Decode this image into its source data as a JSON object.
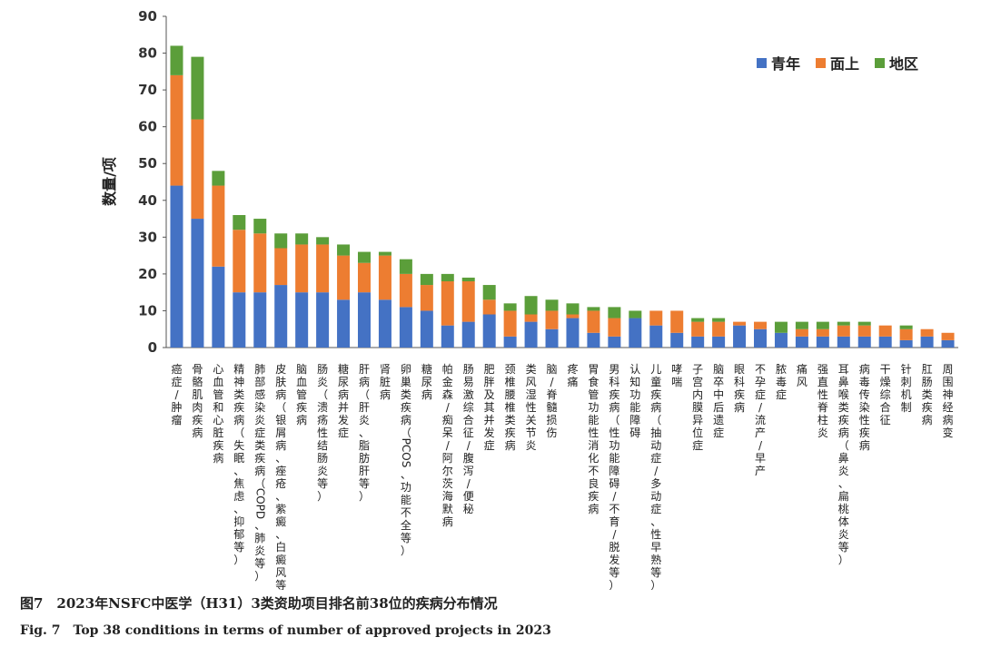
{
  "chart_data": {
    "type": "bar",
    "stacked": true,
    "ylabel": "数量/项",
    "ylim": [
      0,
      90
    ],
    "yticks": [
      0,
      10,
      20,
      30,
      40,
      50,
      60,
      70,
      80,
      90
    ],
    "grid": false,
    "legend_position": "top-right",
    "categories": [
      "癌症/肿瘤",
      "骨骼肌肉疾病",
      "心血管和心脏疾病",
      "精神类疾病（失眠、焦虑、抑郁等）",
      "肺部感染炎症类疾病（COPD、肺炎等）",
      "皮肤病（银屑病、痤疮、紫癜、白癜风等）",
      "脑血管疾病",
      "肠炎（溃疡性结肠炎等）",
      "糖尿病并发症",
      "肝病（肝炎、脂肪肝等）",
      "肾脏病",
      "卵巢类疾病（PCOS、功能不全等）",
      "糖尿病",
      "帕金森/痴呆/阿尔茨海默病",
      "肠易激综合征/腹泻/便秘",
      "肥胖及其并发症",
      "颈椎腰椎类疾病",
      "类风湿性关节炎",
      "脑/脊髓损伤",
      "疼痛",
      "胃食管功能性消化不良疾病",
      "男科疾病（性功能障碍/不育/脱发等）",
      "认知功能障碍",
      "儿童疾病（抽动症/多动症、性早熟等）",
      "哮喘",
      "子宫内膜异位症",
      "脑卒中后遗症",
      "眼科疾病",
      "不孕症/流产/早产",
      "脓毒症",
      "痛风",
      "强直性脊柱炎",
      "耳鼻喉类疾病（鼻炎、扁桃体炎等）",
      "病毒传染性疾病",
      "干燥综合征",
      "针刺机制",
      "肛肠类疾病",
      "周围神经病变"
    ],
    "series": [
      {
        "name": "青年",
        "color": "#4472C4",
        "values": [
          44,
          35,
          22,
          15,
          15,
          17,
          15,
          15,
          13,
          15,
          13,
          11,
          10,
          6,
          7,
          9,
          3,
          7,
          5,
          8,
          4,
          3,
          8,
          6,
          4,
          3,
          3,
          6,
          5,
          4,
          3,
          3,
          3,
          3,
          3,
          2,
          3,
          2
        ]
      },
      {
        "name": "面上",
        "color": "#ED7D31",
        "values": [
          30,
          27,
          22,
          17,
          16,
          10,
          13,
          13,
          12,
          8,
          12,
          9,
          7,
          12,
          11,
          4,
          7,
          2,
          5,
          1,
          6,
          5,
          0,
          4,
          6,
          4,
          4,
          1,
          2,
          0,
          2,
          2,
          3,
          3,
          3,
          3,
          2,
          2
        ]
      },
      {
        "name": "地区",
        "color": "#5B9E3A",
        "values": [
          8,
          17,
          4,
          4,
          4,
          4,
          3,
          2,
          3,
          3,
          1,
          4,
          3,
          2,
          1,
          4,
          2,
          5,
          3,
          3,
          1,
          3,
          2,
          0,
          0,
          1,
          1,
          0,
          0,
          3,
          2,
          2,
          1,
          1,
          0,
          1,
          0,
          0
        ]
      }
    ]
  },
  "caption": {
    "zh": "图7　2023年NSFC中医学（H31）3类资助项目排名前38位的疾病分布情况",
    "en": "Fig. 7　Top 38 conditions in terms of number of approved projects in 2023"
  }
}
